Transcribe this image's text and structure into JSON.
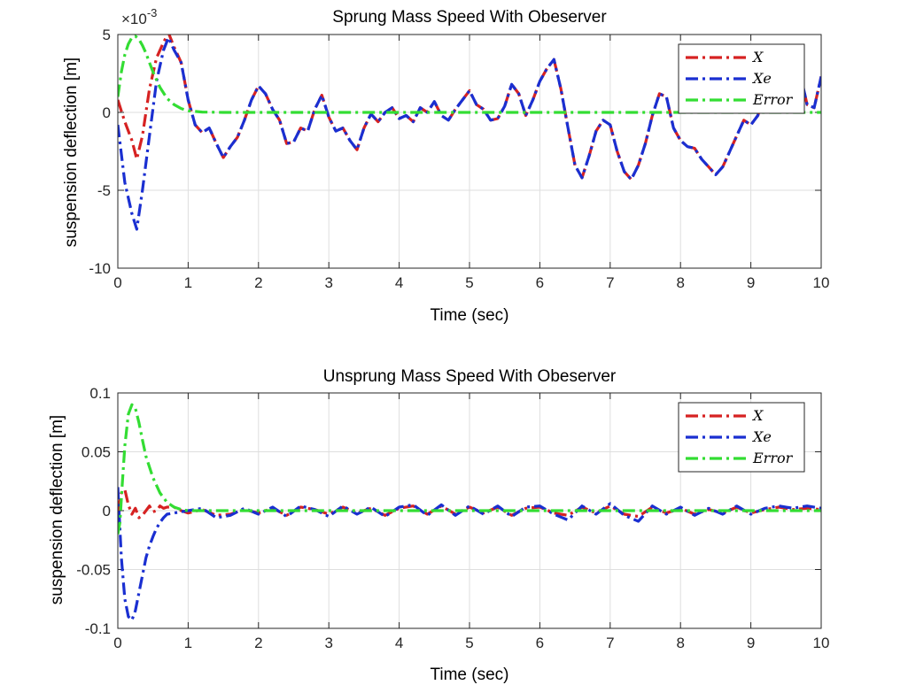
{
  "colors": {
    "X": "#d62222",
    "Xe": "#1a2fd1",
    "Error": "#33dd33",
    "grid": "#dedede",
    "axis": "#262626"
  },
  "chart_data": [
    {
      "type": "line",
      "title": "Sprung Mass Speed With Obeserver",
      "xlabel": "Time (sec)",
      "ylabel": "suspension deflection [m]",
      "y_multiplier_label": "×10",
      "y_multiplier_exp": "-3",
      "xlim": [
        0,
        10
      ],
      "ylim": [
        -10,
        5
      ],
      "xticks": [
        "0",
        "1",
        "2",
        "3",
        "4",
        "5",
        "6",
        "7",
        "8",
        "9",
        "10"
      ],
      "yticks": [
        "5",
        "0",
        "-5",
        "-10"
      ],
      "legend": [
        "X",
        "Xe",
        "Error"
      ],
      "legend_position": "top-right",
      "grid": true,
      "series": [
        {
          "name": "X",
          "x": [
            0,
            0.1,
            0.2,
            0.27,
            0.35,
            0.45,
            0.55,
            0.65,
            0.72,
            0.8,
            0.9,
            1.0,
            1.1,
            1.2,
            1.3,
            1.4,
            1.5,
            1.6,
            1.7,
            1.8,
            1.9,
            2.0,
            2.1,
            2.2,
            2.3,
            2.4,
            2.5,
            2.6,
            2.7,
            2.8,
            2.9,
            3.0,
            3.1,
            3.2,
            3.3,
            3.4,
            3.5,
            3.6,
            3.7,
            3.8,
            3.9,
            4.0,
            4.1,
            4.2,
            4.3,
            4.4,
            4.5,
            4.6,
            4.7,
            4.8,
            4.9,
            5.0,
            5.1,
            5.2,
            5.3,
            5.4,
            5.5,
            5.6,
            5.7,
            5.8,
            5.9,
            6.0,
            6.1,
            6.2,
            6.3,
            6.4,
            6.5,
            6.6,
            6.7,
            6.8,
            6.9,
            7.0,
            7.1,
            7.2,
            7.3,
            7.4,
            7.5,
            7.6,
            7.7,
            7.8,
            7.9,
            8.0,
            8.1,
            8.2,
            8.3,
            8.4,
            8.5,
            8.6,
            8.7,
            8.8,
            8.9,
            9.0,
            9.1,
            9.2,
            9.3,
            9.4,
            9.5,
            9.6,
            9.7,
            9.8,
            9.9,
            10.0
          ],
          "y": [
            0.8,
            -0.6,
            -1.8,
            -3.0,
            -1.5,
            1.5,
            3.5,
            4.5,
            5.1,
            4.2,
            3.2,
            0.8,
            -0.8,
            -1.3,
            -1.0,
            -2.0,
            -2.9,
            -2.2,
            -1.6,
            -0.5,
            0.8,
            1.7,
            1.2,
            0.2,
            -0.5,
            -2.0,
            -1.9,
            -1.0,
            -1.2,
            0.2,
            1.1,
            -0.3,
            -1.2,
            -1.0,
            -1.8,
            -2.4,
            -1.0,
            -0.1,
            -0.6,
            0.0,
            0.3,
            -0.4,
            -0.2,
            -0.6,
            0.3,
            0.0,
            0.7,
            -0.2,
            -0.5,
            0.2,
            0.8,
            1.4,
            0.5,
            0.2,
            -0.5,
            -0.4,
            0.4,
            1.8,
            1.2,
            -0.2,
            0.8,
            2.0,
            2.8,
            3.4,
            1.5,
            -1.0,
            -3.4,
            -4.2,
            -2.8,
            -1.2,
            -0.5,
            -0.8,
            -2.5,
            -3.8,
            -4.3,
            -3.4,
            -2.0,
            -0.2,
            1.2,
            1.0,
            -1.0,
            -1.8,
            -2.2,
            -2.3,
            -3.0,
            -3.5,
            -4.0,
            -3.5,
            -2.5,
            -1.5,
            -0.5,
            -0.8,
            -0.2,
            1.2,
            2.0,
            1.5,
            2.3,
            3.4,
            2.5,
            0.5,
            0.3,
            2.3
          ]
        },
        {
          "name": "Xe",
          "x": [
            0,
            0.1,
            0.2,
            0.27,
            0.35,
            0.45,
            0.55,
            0.65,
            0.72,
            0.8,
            0.9,
            1.0,
            1.1,
            1.2,
            1.3,
            1.4,
            1.5,
            1.6,
            1.7,
            1.8,
            1.9,
            2.0,
            2.1,
            2.2,
            2.3,
            2.4,
            2.5,
            2.6,
            2.7,
            2.8,
            2.9,
            3.0,
            3.1,
            3.2,
            3.3,
            3.4,
            3.5,
            3.6,
            3.7,
            3.8,
            3.9,
            4.0,
            4.1,
            4.2,
            4.3,
            4.4,
            4.5,
            4.6,
            4.7,
            4.8,
            4.9,
            5.0,
            5.1,
            5.2,
            5.3,
            5.4,
            5.5,
            5.6,
            5.7,
            5.8,
            5.9,
            6.0,
            6.1,
            6.2,
            6.3,
            6.4,
            6.5,
            6.6,
            6.7,
            6.8,
            6.9,
            7.0,
            7.1,
            7.2,
            7.3,
            7.4,
            7.5,
            7.6,
            7.7,
            7.8,
            7.9,
            8.0,
            8.1,
            8.2,
            8.3,
            8.4,
            8.5,
            8.6,
            8.7,
            8.8,
            8.9,
            9.0,
            9.1,
            9.2,
            9.3,
            9.4,
            9.5,
            9.6,
            9.7,
            9.8,
            9.9,
            10.0
          ],
          "y": [
            -0.8,
            -4.5,
            -6.5,
            -7.5,
            -5.0,
            -1.5,
            2.0,
            4.0,
            4.8,
            4.0,
            3.2,
            0.8,
            -0.8,
            -1.3,
            -1.0,
            -2.0,
            -2.9,
            -2.2,
            -1.6,
            -0.5,
            0.8,
            1.7,
            1.2,
            0.2,
            -0.5,
            -2.0,
            -1.9,
            -1.0,
            -1.2,
            0.2,
            1.1,
            -0.3,
            -1.2,
            -1.0,
            -1.8,
            -2.4,
            -1.0,
            -0.1,
            -0.6,
            0.0,
            0.3,
            -0.4,
            -0.2,
            -0.6,
            0.3,
            0.0,
            0.7,
            -0.2,
            -0.5,
            0.2,
            0.8,
            1.4,
            0.5,
            0.2,
            -0.5,
            -0.4,
            0.4,
            1.8,
            1.2,
            -0.2,
            0.8,
            2.0,
            2.8,
            3.4,
            1.5,
            -1.0,
            -3.4,
            -4.2,
            -2.8,
            -1.2,
            -0.5,
            -0.8,
            -2.5,
            -3.8,
            -4.3,
            -3.4,
            -2.0,
            -0.2,
            1.2,
            1.0,
            -1.0,
            -1.8,
            -2.2,
            -2.3,
            -3.0,
            -3.5,
            -4.0,
            -3.5,
            -2.5,
            -1.5,
            -0.5,
            -0.8,
            -0.2,
            1.2,
            2.0,
            1.5,
            2.3,
            3.4,
            2.5,
            0.5,
            0.3,
            2.3
          ]
        },
        {
          "name": "Error",
          "x": [
            0,
            0.05,
            0.1,
            0.15,
            0.2,
            0.25,
            0.3,
            0.35,
            0.4,
            0.45,
            0.5,
            0.6,
            0.7,
            0.8,
            0.9,
            1.0,
            1.2,
            1.5,
            2,
            3,
            4,
            5,
            6,
            7,
            8,
            9,
            10
          ],
          "y": [
            1.0,
            2.6,
            3.7,
            4.4,
            4.8,
            4.9,
            4.7,
            4.3,
            3.8,
            3.2,
            2.6,
            1.6,
            0.9,
            0.5,
            0.25,
            0.1,
            0.02,
            0,
            0,
            0,
            0,
            0,
            0,
            0,
            0,
            0,
            0
          ]
        }
      ]
    },
    {
      "type": "line",
      "title": "Unsprung Mass Speed With Obeserver",
      "xlabel": "Time (sec)",
      "ylabel": "suspension deflection [m]",
      "xlim": [
        0,
        10
      ],
      "ylim": [
        -0.1,
        0.1
      ],
      "xticks": [
        "0",
        "1",
        "2",
        "3",
        "4",
        "5",
        "6",
        "7",
        "8",
        "9",
        "10"
      ],
      "yticks": [
        "0.1",
        "0.05",
        "0",
        "-0.05",
        "-0.1"
      ],
      "legend": [
        "X",
        "Xe",
        "Error"
      ],
      "legend_position": "top-right",
      "grid": true,
      "series": [
        {
          "name": "X",
          "x": [
            0,
            0.05,
            0.1,
            0.15,
            0.2,
            0.25,
            0.3,
            0.35,
            0.4,
            0.45,
            0.5,
            0.55,
            0.6,
            0.65,
            0.7,
            0.8,
            0.9,
            1.0,
            1.2,
            1.4,
            1.6,
            1.8,
            2.0,
            2.2,
            2.4,
            2.6,
            2.8,
            3.0,
            3.2,
            3.4,
            3.6,
            3.8,
            4.0,
            4.2,
            4.4,
            4.6,
            4.8,
            5.0,
            5.2,
            5.4,
            5.6,
            5.8,
            6.0,
            6.2,
            6.4,
            6.6,
            6.8,
            7.0,
            7.2,
            7.4,
            7.6,
            7.8,
            8.0,
            8.2,
            8.4,
            8.6,
            8.8,
            9.0,
            9.2,
            9.4,
            9.6,
            9.8,
            10.0
          ],
          "y": [
            0.0,
            0.015,
            0.018,
            0.005,
            -0.003,
            0.002,
            -0.006,
            -0.004,
            0.0,
            0.004,
            -0.001,
            0.0,
            0.004,
            0.002,
            0.003,
            0.003,
            0.0,
            -0.002,
            0.001,
            -0.004,
            -0.003,
            0.001,
            -0.002,
            0.002,
            -0.004,
            0.003,
            0.001,
            -0.003,
            0.003,
            -0.002,
            0.002,
            -0.004,
            0.002,
            0.004,
            -0.003,
            0.004,
            -0.003,
            0.003,
            -0.002,
            0.003,
            -0.004,
            0.002,
            0.003,
            -0.002,
            -0.004,
            0.003,
            -0.002,
            0.004,
            -0.003,
            -0.005,
            0.003,
            -0.002,
            0.002,
            -0.003,
            0.001,
            -0.002,
            0.003,
            -0.002,
            0.001,
            0.003,
            0.001,
            0.002,
            0.001
          ]
        },
        {
          "name": "Xe",
          "x": [
            0,
            0.05,
            0.1,
            0.15,
            0.2,
            0.25,
            0.3,
            0.35,
            0.4,
            0.45,
            0.5,
            0.55,
            0.6,
            0.65,
            0.7,
            0.8,
            0.9,
            1.0,
            1.2,
            1.4,
            1.6,
            1.8,
            2.0,
            2.2,
            2.4,
            2.6,
            2.8,
            3.0,
            3.2,
            3.4,
            3.6,
            3.8,
            4.0,
            4.2,
            4.4,
            4.6,
            4.8,
            5.0,
            5.2,
            5.4,
            5.6,
            5.8,
            6.0,
            6.2,
            6.4,
            6.6,
            6.8,
            7.0,
            7.2,
            7.4,
            7.6,
            7.8,
            8.0,
            8.2,
            8.4,
            8.6,
            8.8,
            9.0,
            9.2,
            9.4,
            9.6,
            9.8,
            10.0
          ],
          "y": [
            0.02,
            -0.04,
            -0.075,
            -0.09,
            -0.093,
            -0.085,
            -0.07,
            -0.055,
            -0.04,
            -0.03,
            -0.022,
            -0.015,
            -0.01,
            -0.006,
            -0.003,
            -0.002,
            -0.001,
            0.0,
            0.002,
            -0.006,
            -0.004,
            0.002,
            -0.003,
            0.003,
            -0.005,
            0.004,
            0.001,
            -0.005,
            0.004,
            -0.003,
            0.003,
            -0.005,
            0.003,
            0.005,
            -0.004,
            0.005,
            -0.004,
            0.004,
            -0.003,
            0.004,
            -0.005,
            0.003,
            0.004,
            -0.003,
            -0.008,
            0.004,
            -0.003,
            0.006,
            -0.004,
            -0.009,
            0.004,
            -0.003,
            0.003,
            -0.004,
            0.002,
            -0.003,
            0.004,
            -0.003,
            0.002,
            0.004,
            0.002,
            0.004,
            0.002
          ]
        },
        {
          "name": "Error",
          "x": [
            0,
            0.03,
            0.06,
            0.1,
            0.15,
            0.2,
            0.25,
            0.3,
            0.35,
            0.4,
            0.5,
            0.6,
            0.7,
            0.8,
            0.9,
            1.0,
            1.2,
            1.5,
            2,
            3,
            4,
            5,
            6,
            7,
            8,
            9,
            10
          ],
          "y": [
            -0.02,
            -0.01,
            0.02,
            0.055,
            0.082,
            0.09,
            0.087,
            0.075,
            0.06,
            0.046,
            0.028,
            0.015,
            0.007,
            0.003,
            0.001,
            0.0,
            0.0,
            0,
            0,
            0,
            0,
            0,
            0,
            0,
            0,
            0,
            0
          ]
        }
      ]
    }
  ]
}
